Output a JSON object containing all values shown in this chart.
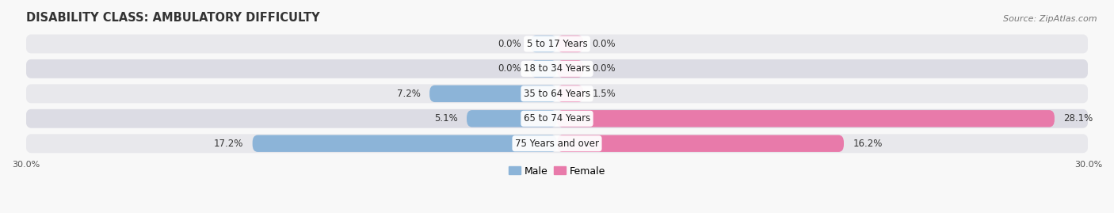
{
  "title": "DISABILITY CLASS: AMBULATORY DIFFICULTY",
  "source": "Source: ZipAtlas.com",
  "categories": [
    "5 to 17 Years",
    "18 to 34 Years",
    "35 to 64 Years",
    "65 to 74 Years",
    "75 Years and over"
  ],
  "male_values": [
    0.0,
    0.0,
    7.2,
    5.1,
    17.2
  ],
  "female_values": [
    0.0,
    0.0,
    1.5,
    28.1,
    16.2
  ],
  "male_color": "#8cb4d8",
  "female_color": "#e87aaa",
  "row_bg_color": "#e8e8ec",
  "row_bg_color2": "#dcdce4",
  "xlim": 30.0,
  "min_bar": 1.5,
  "title_fontsize": 10.5,
  "label_fontsize": 8.5,
  "tick_fontsize": 8,
  "source_fontsize": 8
}
